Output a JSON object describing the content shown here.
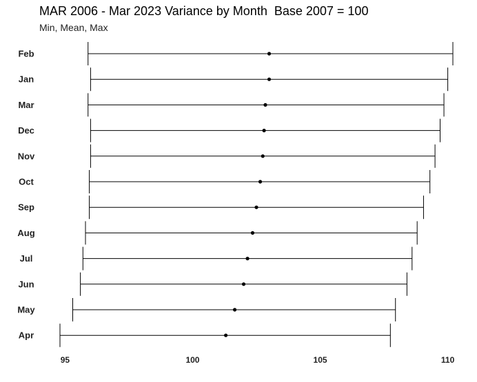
{
  "chart_data": {
    "type": "dumbbell",
    "title": "MAR 2006 - Mar 2023 Variance by Month  Base 2007 = 100",
    "subtitle": "Min, Mean, Max",
    "xlabel": "",
    "ylabel": "",
    "xlim": [
      94.8,
      110.2
    ],
    "xticks": [
      95,
      100,
      105,
      110
    ],
    "grid": false,
    "categories": [
      "Feb",
      "Jan",
      "Mar",
      "Dec",
      "Nov",
      "Oct",
      "Sep",
      "Aug",
      "Jul",
      "Jun",
      "May",
      "Apr"
    ],
    "series": [
      {
        "name": "Min",
        "values": [
          95.9,
          96.0,
          95.9,
          96.0,
          96.0,
          95.95,
          95.95,
          95.8,
          95.7,
          95.6,
          95.3,
          94.8
        ]
      },
      {
        "name": "Mean",
        "values": [
          103.0,
          103.0,
          102.85,
          102.8,
          102.75,
          102.65,
          102.5,
          102.35,
          102.15,
          102.0,
          101.65,
          101.3
        ]
      },
      {
        "name": "Max",
        "values": [
          110.2,
          110.0,
          109.85,
          109.7,
          109.5,
          109.3,
          109.05,
          108.8,
          108.6,
          108.4,
          107.95,
          107.75
        ]
      }
    ]
  }
}
